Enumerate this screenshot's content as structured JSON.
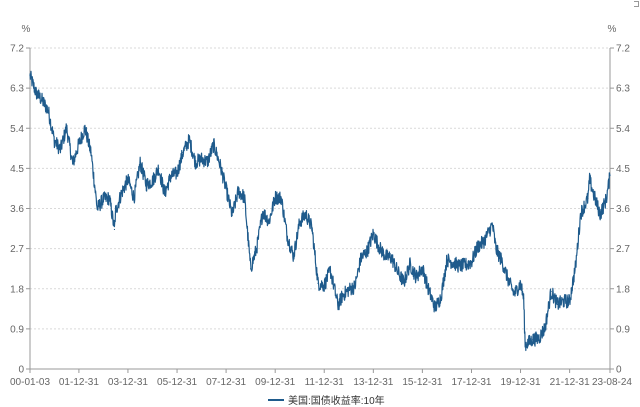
{
  "chart_data": {
    "type": "line",
    "title": "",
    "xlabel": "",
    "ylabel_left": "%",
    "ylabel_right": "%",
    "ylim": [
      0,
      7.2
    ],
    "y_ticks": [
      "0",
      "0.9",
      "1.8",
      "2.7",
      "3.6",
      "4.5",
      "5.4",
      "6.3",
      "7.2"
    ],
    "x_tick_labels": [
      "00-01-03",
      "01-12-31",
      "03-12-31",
      "05-12-31",
      "07-12-31",
      "09-12-31",
      "11-12-31",
      "13-12-31",
      "15-12-31",
      "17-12-31",
      "19-12-31",
      "21-12-31",
      "23-08-24"
    ],
    "grid": true,
    "legend_position": "bottom-center",
    "line_color": "#1f5b8c",
    "series": [
      {
        "name": "美国:国债收益率:10年",
        "x": [
          "2000-01-03",
          "2000-03-31",
          "2000-06-30",
          "2000-09-30",
          "2000-12-31",
          "2001-03-31",
          "2001-06-30",
          "2001-09-30",
          "2001-12-31",
          "2002-03-31",
          "2002-06-30",
          "2002-09-30",
          "2002-12-31",
          "2003-03-31",
          "2003-06-13",
          "2003-06-30",
          "2003-09-30",
          "2003-12-31",
          "2004-03-31",
          "2004-06-30",
          "2004-09-30",
          "2004-12-31",
          "2005-03-31",
          "2005-06-30",
          "2005-09-30",
          "2005-12-31",
          "2006-03-31",
          "2006-06-30",
          "2006-09-30",
          "2006-12-31",
          "2007-03-31",
          "2007-06-30",
          "2007-09-30",
          "2007-12-31",
          "2008-03-31",
          "2008-06-30",
          "2008-09-30",
          "2008-12-31",
          "2009-03-31",
          "2009-06-30",
          "2009-09-30",
          "2009-12-31",
          "2010-03-31",
          "2010-06-30",
          "2010-09-30",
          "2010-12-31",
          "2011-03-31",
          "2011-06-30",
          "2011-09-30",
          "2011-12-31",
          "2012-03-31",
          "2012-07-24",
          "2012-09-30",
          "2012-12-31",
          "2013-03-31",
          "2013-06-30",
          "2013-09-30",
          "2013-12-31",
          "2014-03-31",
          "2014-06-30",
          "2014-09-30",
          "2014-12-31",
          "2015-03-31",
          "2015-06-30",
          "2015-09-30",
          "2015-12-31",
          "2016-03-31",
          "2016-07-08",
          "2016-09-30",
          "2016-12-31",
          "2017-03-31",
          "2017-06-30",
          "2017-09-30",
          "2017-12-31",
          "2018-03-31",
          "2018-06-30",
          "2018-11-08",
          "2018-12-31",
          "2019-03-31",
          "2019-06-30",
          "2019-09-30",
          "2019-12-31",
          "2020-02-15",
          "2020-03-09",
          "2020-06-30",
          "2020-09-30",
          "2020-12-31",
          "2021-03-31",
          "2021-06-30",
          "2021-09-30",
          "2021-12-31",
          "2022-03-31",
          "2022-06-14",
          "2022-09-30",
          "2022-10-24",
          "2022-12-31",
          "2023-03-31",
          "2023-06-30",
          "2023-08-24"
        ],
        "values": [
          6.58,
          6.2,
          6.03,
          5.8,
          5.12,
          4.92,
          5.41,
          4.6,
          5.05,
          5.4,
          4.85,
          3.6,
          3.81,
          3.83,
          3.13,
          3.54,
          3.96,
          4.25,
          3.84,
          4.62,
          4.14,
          4.22,
          4.5,
          3.94,
          4.33,
          4.39,
          4.86,
          5.14,
          4.64,
          4.71,
          4.65,
          5.03,
          4.59,
          4.04,
          3.45,
          3.99,
          3.85,
          2.25,
          2.71,
          3.53,
          3.31,
          3.85,
          3.84,
          2.97,
          2.53,
          3.3,
          3.47,
          3.18,
          1.92,
          1.88,
          2.21,
          1.43,
          1.65,
          1.78,
          1.85,
          2.49,
          2.64,
          3.04,
          2.72,
          2.53,
          2.49,
          2.17,
          1.94,
          2.35,
          2.06,
          2.27,
          1.78,
          1.37,
          1.6,
          2.45,
          2.39,
          2.31,
          2.33,
          2.4,
          2.74,
          2.85,
          3.24,
          2.69,
          2.41,
          2.0,
          1.68,
          1.92,
          1.59,
          0.54,
          0.66,
          0.69,
          0.93,
          1.74,
          1.45,
          1.52,
          1.52,
          2.32,
          3.49,
          3.83,
          4.25,
          3.88,
          3.47,
          3.81,
          4.34
        ]
      }
    ]
  }
}
